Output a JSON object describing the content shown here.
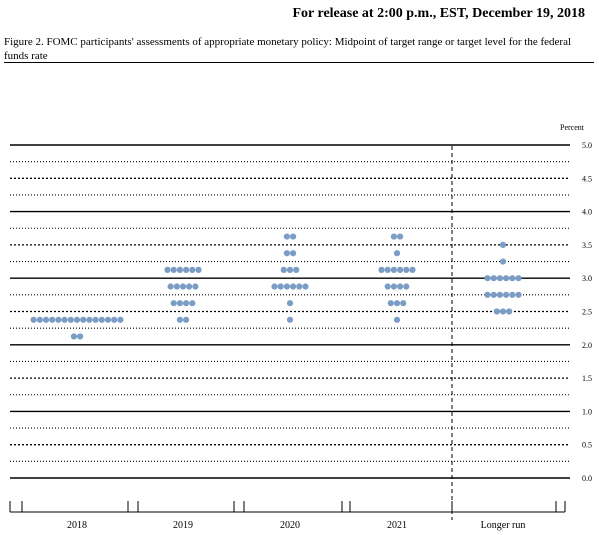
{
  "header": {
    "release_text": "For release at 2:00 p.m., EST, December 19, 2018"
  },
  "caption": "Figure 2. FOMC participants' assessments of appropriate monetary policy: Midpoint of target range or target level for the federal funds rate",
  "chart_data": {
    "type": "scatter",
    "title": "",
    "ylabel": "Percent",
    "xlabel": "",
    "ylim": [
      0,
      5
    ],
    "yticks": [
      "0.0",
      "0.5",
      "1.0",
      "1.5",
      "2.0",
      "2.5",
      "3.0",
      "3.5",
      "4.0",
      "4.5",
      "5.0"
    ],
    "categories": [
      "2018",
      "2019",
      "2020",
      "2021",
      "Longer run"
    ],
    "dot_color": "#7b9cc4",
    "series": [
      {
        "category": "2018",
        "points": [
          {
            "y": 2.375,
            "count": 15
          },
          {
            "y": 2.125,
            "count": 2
          }
        ]
      },
      {
        "category": "2019",
        "points": [
          {
            "y": 3.125,
            "count": 6
          },
          {
            "y": 2.875,
            "count": 5
          },
          {
            "y": 2.625,
            "count": 4
          },
          {
            "y": 2.375,
            "count": 2
          }
        ]
      },
      {
        "category": "2020",
        "points": [
          {
            "y": 3.625,
            "count": 2
          },
          {
            "y": 3.375,
            "count": 2
          },
          {
            "y": 3.125,
            "count": 3
          },
          {
            "y": 2.875,
            "count": 6
          },
          {
            "y": 2.625,
            "count": 1
          },
          {
            "y": 2.375,
            "count": 1
          }
        ]
      },
      {
        "category": "2021",
        "points": [
          {
            "y": 3.625,
            "count": 2
          },
          {
            "y": 3.375,
            "count": 1
          },
          {
            "y": 3.125,
            "count": 6
          },
          {
            "y": 2.875,
            "count": 4
          },
          {
            "y": 2.625,
            "count": 3
          },
          {
            "y": 2.375,
            "count": 1
          }
        ]
      },
      {
        "category": "Longer run",
        "points": [
          {
            "y": 3.5,
            "count": 1
          },
          {
            "y": 3.25,
            "count": 1
          },
          {
            "y": 3.0,
            "count": 6
          },
          {
            "y": 2.75,
            "count": 6
          },
          {
            "y": 2.5,
            "count": 3
          }
        ]
      }
    ]
  }
}
